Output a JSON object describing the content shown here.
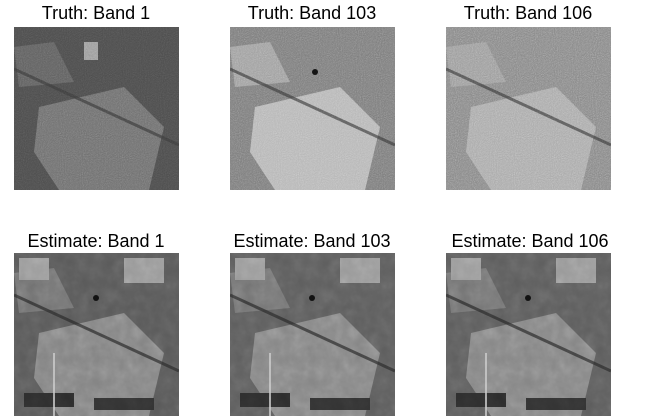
{
  "panels": [
    {
      "title": "Truth: Band 1"
    },
    {
      "title": "Truth: Band 103"
    },
    {
      "title": "Truth: Band 106"
    },
    {
      "title": "Estimate: Band 1"
    },
    {
      "title": "Estimate: Band 103"
    },
    {
      "title": "Estimate: Band 106"
    }
  ]
}
